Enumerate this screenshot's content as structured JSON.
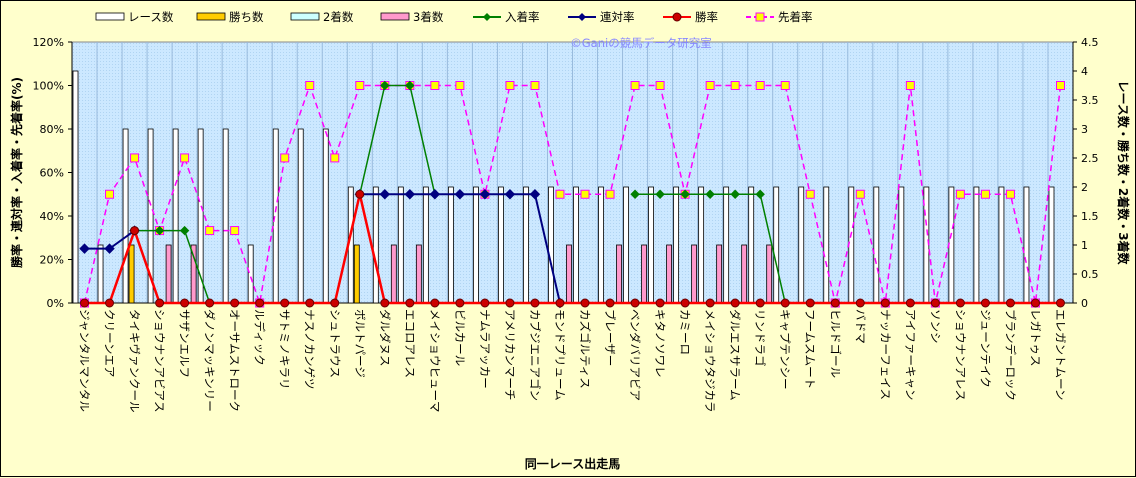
{
  "chart_data": {
    "type": "bar",
    "xlabel": "同一レース出走馬",
    "ylabel": "勝率・連対率・入着率・先着率(%)",
    "y2label": "レース数・勝ち数・2着数・3着数",
    "watermark": "©Ganiの競馬データ研究室",
    "ylim": [
      0,
      120
    ],
    "y2lim": [
      0,
      4.5
    ],
    "yticks": [
      "0%",
      "20%",
      "40%",
      "60%",
      "80%",
      "100%",
      "120%"
    ],
    "y2ticks": [
      "0",
      "0.5",
      "1",
      "1.5",
      "2",
      "2.5",
      "3",
      "3.5",
      "4",
      "4.5"
    ],
    "grid": true,
    "legend_position": "top",
    "categories": [
      "ジャンタルマンタル",
      "クリーンエア",
      "タイキヴァンクール",
      "ショウナンアビアス",
      "サザンエルフ",
      "ダノンマッキンリー",
      "オーサムストローク",
      "ルディック",
      "サトミノキラリ",
      "ナスノカンゲツ",
      "シュトラウス",
      "ボルトパージ",
      "ダルダヌス",
      "エコロアレス",
      "メイショウヒューマ",
      "ビルカール",
      "ナムラアッカー",
      "アメリカンマーチ",
      "カブジエニアゴン",
      "モンドプリューム",
      "カズゴルティス",
      "ブレーザー",
      "ベンダバリアビア",
      "キタノソワレ",
      "カミーロ",
      "メイショウタジカラ",
      "ダルエスサラーム",
      "リンドラゴ",
      "キャプテンシー",
      "フームスムート",
      "ヒルドゴール",
      "バドマ",
      "ナッカーフェイス",
      "アイファーキャン",
      "ソンシ",
      "ショウナンアレス",
      "ジューンテイク",
      "ブランデーロック",
      "レガトゥス",
      "エレガントムーン"
    ],
    "series": [
      {
        "name": "レース数",
        "kind": "bar",
        "axis": "right",
        "color": "#ffffff",
        "values": [
          4,
          1,
          3,
          3,
          3,
          3,
          3,
          1,
          3,
          3,
          3,
          2,
          2,
          2,
          2,
          2,
          2,
          2,
          2,
          2,
          2,
          2,
          2,
          2,
          2,
          2,
          2,
          2,
          2,
          2,
          2,
          2,
          2,
          2,
          2,
          2,
          2,
          2,
          2,
          2
        ]
      },
      {
        "name": "勝ち数",
        "kind": "bar",
        "axis": "right",
        "color": "#ffcc00",
        "values": [
          0,
          0,
          1,
          0,
          0,
          0,
          0,
          0,
          0,
          0,
          0,
          1,
          0,
          0,
          0,
          0,
          0,
          0,
          0,
          0,
          0,
          0,
          0,
          0,
          0,
          0,
          0,
          0,
          0,
          0,
          0,
          0,
          0,
          0,
          0,
          0,
          0,
          0,
          0,
          0
        ]
      },
      {
        "name": "2着数",
        "kind": "bar",
        "axis": "right",
        "color": "#ccffff",
        "values": [
          0,
          0,
          0,
          0,
          0,
          0,
          0,
          0,
          0,
          0,
          0,
          0,
          0,
          0,
          0,
          0,
          0,
          0,
          0,
          0,
          0,
          0,
          0,
          0,
          0,
          0,
          0,
          0,
          0,
          0,
          0,
          0,
          0,
          0,
          0,
          0,
          0,
          0,
          0,
          0
        ]
      },
      {
        "name": "3着数",
        "kind": "bar",
        "axis": "right",
        "color": "#ff99cc",
        "values": [
          0,
          0,
          0,
          1,
          1,
          0,
          0,
          0,
          0,
          0,
          0,
          0,
          1,
          1,
          0,
          0,
          0,
          0,
          0,
          1,
          0,
          1,
          1,
          1,
          1,
          1,
          1,
          1,
          0,
          0,
          0,
          0,
          0,
          0,
          0,
          0,
          0,
          0,
          0,
          0
        ]
      },
      {
        "name": "入着率",
        "kind": "line",
        "axis": "left",
        "color": "#008000",
        "values": [
          null,
          null,
          33.3,
          33.3,
          33.3,
          0,
          null,
          null,
          null,
          null,
          null,
          50,
          100,
          100,
          50,
          50,
          50,
          50,
          50,
          null,
          null,
          null,
          50,
          50,
          50,
          50,
          50,
          50,
          0,
          null,
          null,
          null,
          null,
          null,
          null,
          null,
          null,
          null,
          null,
          null
        ]
      },
      {
        "name": "連対率",
        "kind": "line",
        "axis": "left",
        "color": "#000080",
        "values": [
          25,
          25,
          33.3,
          null,
          null,
          null,
          null,
          null,
          null,
          null,
          null,
          50,
          50,
          50,
          50,
          50,
          50,
          50,
          50,
          0,
          null,
          null,
          null,
          null,
          null,
          null,
          null,
          null,
          null,
          null,
          null,
          null,
          null,
          null,
          null,
          null,
          null,
          null,
          null,
          null
        ]
      },
      {
        "name": "勝率",
        "kind": "line",
        "axis": "left",
        "color": "#ff0000",
        "values": [
          0,
          0,
          33.3,
          0,
          0,
          0,
          0,
          0,
          0,
          0,
          0,
          50,
          0,
          0,
          0,
          0,
          0,
          0,
          0,
          0,
          0,
          0,
          0,
          0,
          0,
          0,
          0,
          0,
          0,
          0,
          0,
          0,
          0,
          0,
          0,
          0,
          0,
          0,
          0,
          0
        ]
      },
      {
        "name": "先着率",
        "kind": "line",
        "axis": "left",
        "color": "#ff00ff",
        "values": [
          0,
          50,
          66.7,
          33.3,
          66.7,
          33.3,
          33.3,
          0,
          66.7,
          100,
          66.7,
          100,
          100,
          100,
          100,
          100,
          50,
          100,
          100,
          50,
          50,
          50,
          100,
          100,
          50,
          100,
          100,
          100,
          100,
          50,
          0,
          50,
          0,
          100,
          0,
          50,
          50,
          50,
          0,
          100
        ]
      }
    ]
  }
}
